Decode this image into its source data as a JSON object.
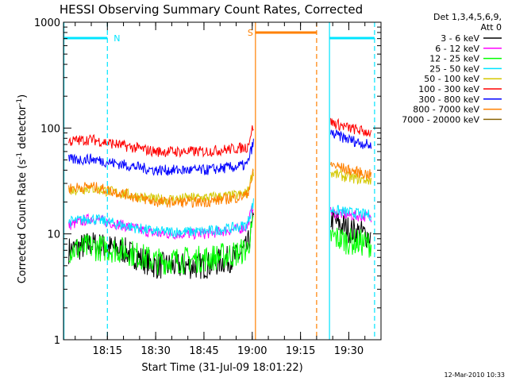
{
  "chart_data": {
    "type": "line",
    "title": "HESSI Observing Summary Count Rates, Corrected",
    "xlabel": "Start Time (31-Jul-09 18:01:22)",
    "ylabel_main": "Corrected Count Rate (s",
    "ylabel_sup1": "-1",
    "ylabel_mid": " detector",
    "ylabel_sup2": "-1",
    "ylabel_end": ")",
    "y_scale": "log",
    "ylim": [
      1,
      1000
    ],
    "xlim": [
      "18:01:22",
      "19:40:00"
    ],
    "x_tick_labels": [
      "18:15",
      "18:30",
      "18:45",
      "19:00",
      "19:15",
      "19:30"
    ],
    "y_tick_labels": [
      "1",
      "10",
      "100",
      "1000"
    ],
    "legend_placement": "right",
    "legend_header": [
      "Det 1,3,4,5,6,9,",
      "Att 0"
    ],
    "timestamp": "12-Mar-2010 10:33",
    "flags": [
      {
        "label": "N",
        "color": "#00e5ff",
        "segments": [
          [
            "18:01:22",
            "18:15:00"
          ],
          [
            "19:24:00",
            "19:38:00"
          ]
        ]
      },
      {
        "label": "S",
        "color": "#ff8000",
        "segments": [
          [
            "19:01:00",
            "19:20:00"
          ]
        ]
      }
    ],
    "markers": [
      {
        "time": "18:01:30",
        "color": "#00e5ff",
        "style": "solid"
      },
      {
        "time": "18:15:00",
        "color": "#00e5ff",
        "style": "dashed"
      },
      {
        "time": "19:01:00",
        "color": "#ff8000",
        "style": "solid"
      },
      {
        "time": "19:20:00",
        "color": "#ff8000",
        "style": "dashed"
      },
      {
        "time": "19:24:00",
        "color": "#00e5ff",
        "style": "solid"
      },
      {
        "time": "19:38:00",
        "color": "#00e5ff",
        "style": "dashed"
      }
    ],
    "series": [
      {
        "name": "3 - 6 keV",
        "color": "#000000",
        "x": [
          "18:03",
          "18:10",
          "18:20",
          "18:30",
          "18:45",
          "18:55",
          "19:00",
          "19:24",
          "19:30",
          "19:37"
        ],
        "values": [
          7,
          8,
          7,
          5,
          5,
          6,
          8,
          14,
          11,
          9.5
        ]
      },
      {
        "name": "6 - 12 keV",
        "color": "#ff00ff",
        "x": [
          "18:03",
          "18:10",
          "18:20",
          "18:30",
          "18:45",
          "18:55",
          "19:00",
          "19:24",
          "19:30",
          "19:37"
        ],
        "values": [
          12,
          14,
          12,
          10,
          10,
          11,
          12,
          16,
          15,
          14.5
        ]
      },
      {
        "name": "12 - 25 keV",
        "color": "#00ff00",
        "x": [
          "18:03",
          "18:10",
          "18:20",
          "18:30",
          "18:45",
          "18:55",
          "19:00",
          "19:24",
          "19:30",
          "19:37"
        ],
        "values": [
          7,
          7.5,
          7,
          5.5,
          5.8,
          6.5,
          7.5,
          9.5,
          8.5,
          8
        ]
      },
      {
        "name": "25 - 50 keV",
        "color": "#00e5ff",
        "x": [
          "18:03",
          "18:10",
          "18:20",
          "18:30",
          "18:45",
          "18:55",
          "19:00",
          "19:24",
          "19:30",
          "19:37"
        ],
        "values": [
          13,
          14,
          12,
          10.5,
          10.5,
          11.5,
          12.5,
          17,
          16,
          15
        ]
      },
      {
        "name": "50 - 100 keV",
        "color": "#d4c800",
        "x": [
          "18:03",
          "18:10",
          "18:20",
          "18:30",
          "18:45",
          "18:55",
          "19:00",
          "19:24",
          "19:30",
          "19:37"
        ],
        "values": [
          26,
          27,
          24,
          21,
          22,
          23,
          25,
          38,
          34,
          32
        ]
      },
      {
        "name": "100 - 300 keV",
        "color": "#ff0000",
        "x": [
          "18:03",
          "18:10",
          "18:20",
          "18:30",
          "18:45",
          "18:55",
          "19:00",
          "19:24",
          "19:30",
          "19:37"
        ],
        "values": [
          75,
          78,
          68,
          60,
          60,
          64,
          67,
          115,
          100,
          90
        ]
      },
      {
        "name": "300 - 800 keV",
        "color": "#0000ff",
        "x": [
          "18:03",
          "18:10",
          "18:20",
          "18:30",
          "18:45",
          "18:55",
          "19:00",
          "19:24",
          "19:30",
          "19:37"
        ],
        "values": [
          50,
          51,
          45,
          40,
          40,
          43,
          46,
          90,
          78,
          68
        ]
      },
      {
        "name": "800 - 7000 keV",
        "color": "#ff8000",
        "x": [
          "18:03",
          "18:10",
          "18:20",
          "18:30",
          "18:45",
          "18:55",
          "19:00",
          "19:24",
          "19:30",
          "19:37"
        ],
        "values": [
          27,
          28,
          24,
          20,
          20,
          22,
          24,
          46,
          40,
          36
        ]
      },
      {
        "name": "7000 - 20000 keV",
        "color": "#8b6508",
        "x": [],
        "values": []
      }
    ]
  }
}
